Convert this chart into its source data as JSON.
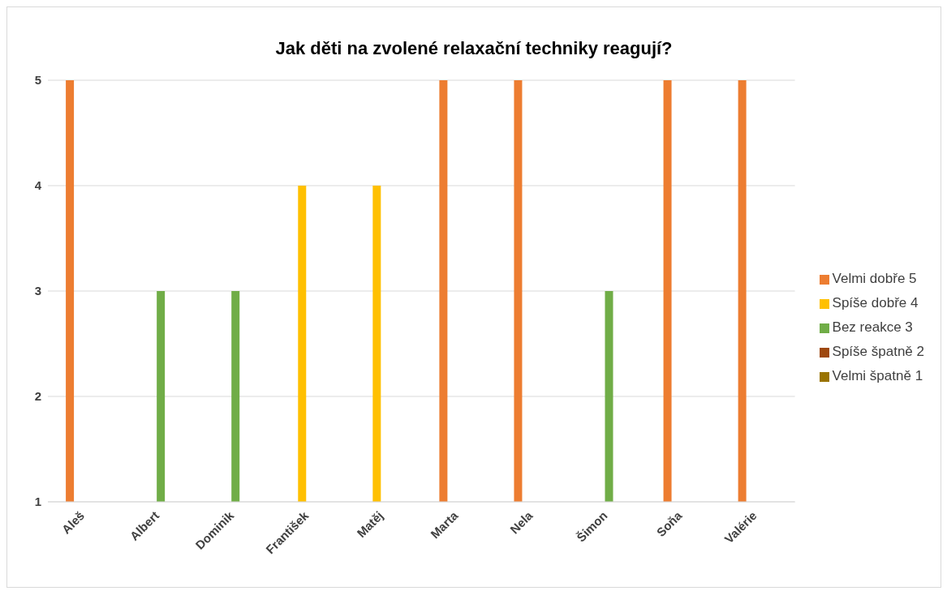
{
  "chart_data": {
    "type": "bar",
    "title": "Jak děti na zvolené relaxační techniky reagují?",
    "categories": [
      "Aleš",
      "Albert",
      "Dominik",
      "František",
      "Matěj",
      "Marta",
      "Nela",
      "Šimon",
      "Soňa",
      "Valérie"
    ],
    "series": [
      {
        "name": "Velmi dobře 5",
        "color": "#ed7d31",
        "values": [
          5,
          null,
          null,
          null,
          null,
          5,
          5,
          null,
          5,
          5
        ]
      },
      {
        "name": "Spíše dobře 4",
        "color": "#ffc000",
        "values": [
          null,
          null,
          null,
          4,
          4,
          null,
          null,
          null,
          null,
          null
        ]
      },
      {
        "name": "Bez reakce 3",
        "color": "#70ad47",
        "values": [
          null,
          3,
          3,
          null,
          null,
          null,
          null,
          3,
          null,
          null
        ]
      },
      {
        "name": "Spíše špatně 2",
        "color": "#9e480e",
        "values": [
          null,
          null,
          null,
          null,
          null,
          null,
          null,
          null,
          null,
          null
        ]
      },
      {
        "name": "Velmi špatně 1",
        "color": "#997300",
        "values": [
          null,
          null,
          null,
          null,
          null,
          null,
          null,
          null,
          null,
          null
        ]
      }
    ],
    "ylim": [
      1,
      5
    ],
    "yticks": [
      1,
      2,
      3,
      4,
      5
    ],
    "grid": "y",
    "legend": "right"
  }
}
